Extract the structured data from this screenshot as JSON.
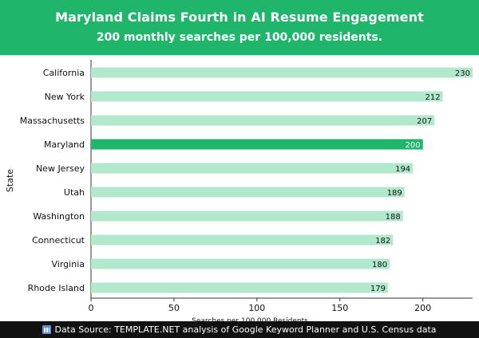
{
  "header": {
    "title": "Maryland Claims Fourth in AI Resume Engagement",
    "subtitle": "200 monthly searches per 100,000 residents."
  },
  "footer": {
    "icon": "bar-chart-icon",
    "source_text": "Data Source: TEMPLATE.NET analysis of Google Keyword Planner and U.S. Census data"
  },
  "colors": {
    "header_bg": "#1fb56a",
    "bar": "#b2e8cc",
    "bar_highlight": "#1fb56a",
    "footer_bg": "#111111"
  },
  "chart_data": {
    "type": "bar",
    "orientation": "horizontal",
    "categories": [
      "California",
      "New York",
      "Massachusetts",
      "Maryland",
      "New Jersey",
      "Utah",
      "Washington",
      "Connecticut",
      "Virginia",
      "Rhode Island"
    ],
    "values": [
      230,
      212,
      207,
      200,
      194,
      189,
      188,
      182,
      180,
      179
    ],
    "highlight": "Maryland",
    "xlabel": "Searches per 100,000 Residents",
    "ylabel": "State",
    "xlim": [
      0,
      230
    ],
    "xticks": [
      0,
      50,
      100,
      150,
      200
    ],
    "grid": false
  }
}
